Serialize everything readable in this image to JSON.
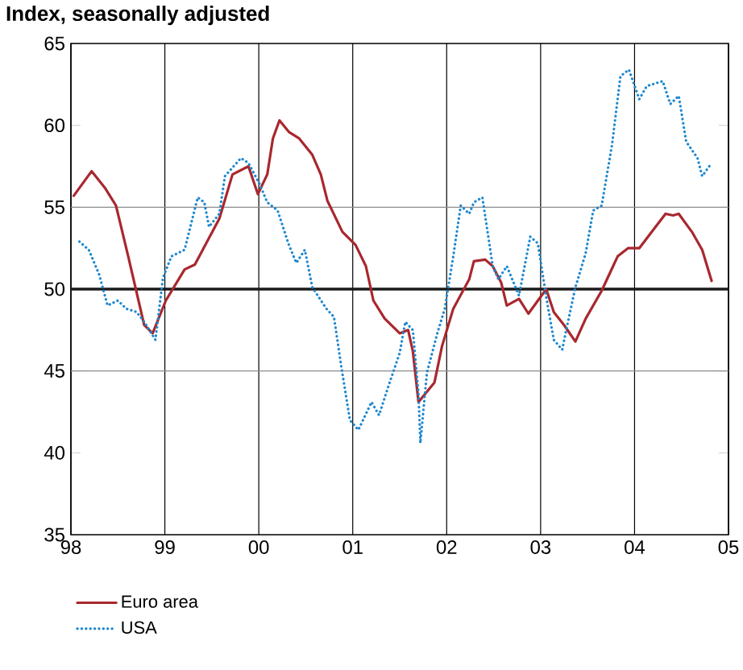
{
  "chart_data": {
    "type": "line",
    "title": "Index, seasonally adjusted",
    "xlim": [
      1998,
      2005
    ],
    "xticks": [
      {
        "value": 1998,
        "label": "98"
      },
      {
        "value": 1999,
        "label": "99"
      },
      {
        "value": 2000,
        "label": "00"
      },
      {
        "value": 2001,
        "label": "01"
      },
      {
        "value": 2002,
        "label": "02"
      },
      {
        "value": 2003,
        "label": "03"
      },
      {
        "value": 2004,
        "label": "04"
      },
      {
        "value": 2005,
        "label": "05"
      }
    ],
    "ylim": [
      35,
      65
    ],
    "yticks": [
      35,
      40,
      45,
      50,
      55,
      60,
      65
    ],
    "grid": "x",
    "legend": "bottom",
    "ref_lines": [
      {
        "axis": "y",
        "value": 45,
        "color": "#8c8c8c"
      },
      {
        "axis": "y",
        "value": 55,
        "color": "#8c8c8c"
      },
      {
        "axis": "y",
        "value": 50,
        "color": "#1a1a1a"
      }
    ],
    "series": [
      {
        "name": "Euro area",
        "color": "#a8282e",
        "line_style": "solid",
        "x": [
          1998.03,
          1998.22,
          1998.36,
          1998.48,
          1998.61,
          1998.78,
          1998.87,
          1999.01,
          1999.21,
          1999.32,
          1999.58,
          1999.72,
          1999.89,
          1999.99,
          2000.09,
          2000.15,
          2000.22,
          2000.32,
          2000.43,
          2000.57,
          2000.66,
          2000.73,
          2000.89,
          2001.03,
          2001.14,
          2001.22,
          2001.34,
          2001.5,
          2001.59,
          2001.64,
          2001.7,
          2001.87,
          2001.95,
          2002.07,
          2002.24,
          2002.29,
          2002.41,
          2002.49,
          2002.58,
          2002.64,
          2002.77,
          2002.87,
          2003.06,
          2003.14,
          2003.25,
          2003.37,
          2003.48,
          2003.65,
          2003.82,
          2003.93,
          2004.05,
          2004.21,
          2004.33,
          2004.41,
          2004.47,
          2004.61,
          2004.72,
          2004.82
        ],
        "values": [
          55.7,
          57.2,
          56.2,
          55.1,
          52.0,
          47.8,
          47.3,
          49.3,
          51.2,
          51.5,
          54.3,
          57.0,
          57.5,
          55.8,
          57.0,
          59.2,
          60.3,
          59.6,
          59.2,
          58.2,
          57.0,
          55.4,
          53.5,
          52.7,
          51.4,
          49.3,
          48.2,
          47.3,
          47.5,
          46.2,
          43.1,
          44.3,
          46.5,
          48.8,
          50.6,
          51.7,
          51.8,
          51.4,
          50.4,
          49.0,
          49.4,
          48.5,
          50.0,
          48.6,
          47.8,
          46.8,
          48.2,
          49.9,
          52.0,
          52.5,
          52.5,
          53.7,
          54.6,
          54.5,
          54.6,
          53.5,
          52.4,
          50.5
        ]
      },
      {
        "name": "USA",
        "color": "#1e88d0",
        "line_style": "dotted",
        "x": [
          1998.09,
          1998.19,
          1998.3,
          1998.39,
          1998.5,
          1998.59,
          1998.7,
          1998.78,
          1998.9,
          1998.98,
          1999.07,
          1999.21,
          1999.35,
          1999.42,
          1999.47,
          1999.58,
          1999.64,
          1999.81,
          1999.89,
          2000.01,
          2000.09,
          2000.2,
          2000.32,
          2000.4,
          2000.49,
          2000.57,
          2000.72,
          2000.8,
          2000.88,
          2000.97,
          2001.06,
          2001.2,
          2001.28,
          2001.37,
          2001.5,
          2001.56,
          2001.64,
          2001.7,
          2001.72,
          2001.79,
          2001.9,
          2001.98,
          2002.07,
          2002.15,
          2002.24,
          2002.29,
          2002.38,
          2002.49,
          2002.55,
          2002.64,
          2002.77,
          2002.89,
          2002.97,
          2003.06,
          2003.14,
          2003.23,
          2003.28,
          2003.37,
          2003.48,
          2003.56,
          2003.65,
          2003.76,
          2003.85,
          2003.94,
          2004.05,
          2004.13,
          2004.3,
          2004.38,
          2004.47,
          2004.55,
          2004.67,
          2004.72,
          2004.82
        ],
        "values": [
          52.9,
          52.4,
          50.9,
          49.0,
          49.3,
          48.8,
          48.6,
          48.0,
          46.9,
          50.7,
          52.0,
          52.4,
          55.6,
          55.3,
          53.8,
          54.6,
          56.9,
          58.0,
          57.7,
          56.4,
          55.3,
          54.8,
          52.7,
          51.6,
          52.4,
          50.1,
          48.8,
          48.3,
          45.2,
          42.0,
          41.4,
          43.1,
          42.3,
          43.9,
          46.1,
          48.0,
          47.5,
          43.6,
          40.6,
          44.9,
          47.3,
          48.8,
          52.0,
          55.1,
          54.6,
          55.3,
          55.6,
          51.4,
          50.6,
          51.4,
          49.6,
          53.2,
          52.8,
          49.5,
          46.9,
          46.3,
          47.7,
          50.1,
          52.2,
          54.8,
          55.1,
          58.8,
          63.0,
          63.4,
          61.6,
          62.4,
          62.7,
          61.3,
          61.8,
          59.0,
          58.0,
          56.9,
          57.7
        ]
      }
    ]
  }
}
